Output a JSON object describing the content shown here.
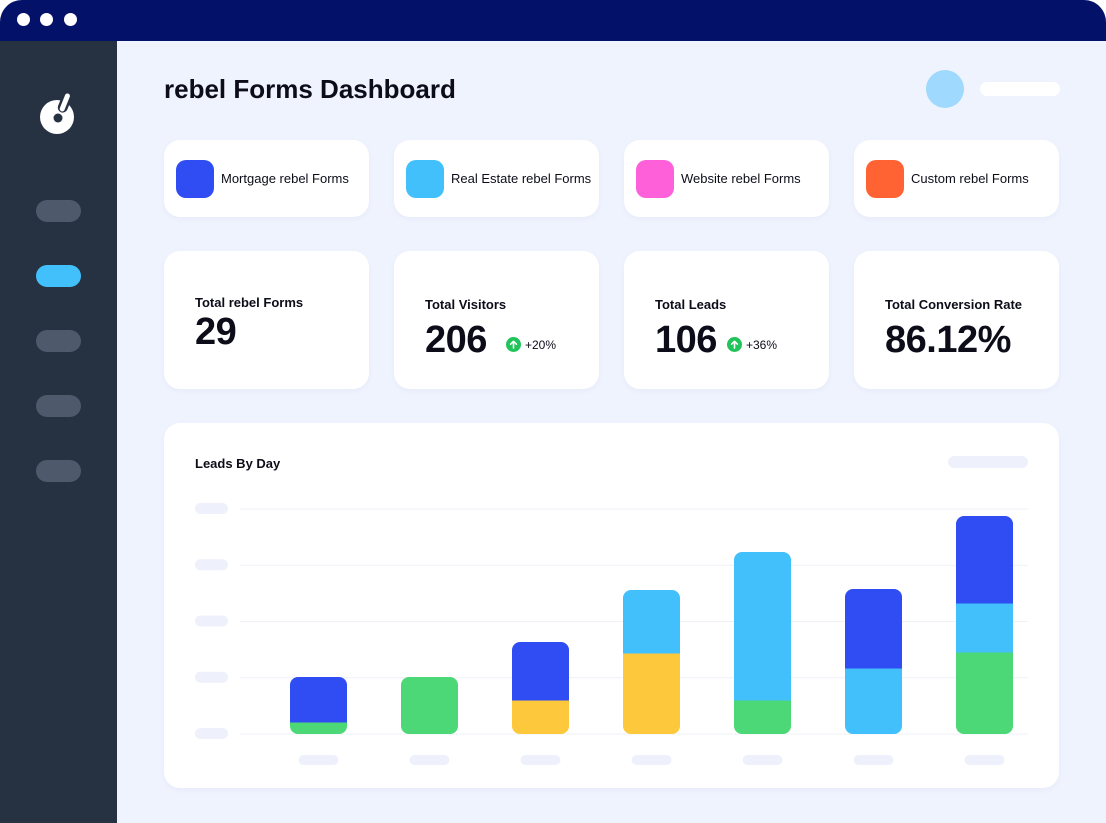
{
  "window": {
    "dots": [
      "close",
      "minimize",
      "maximize"
    ]
  },
  "sidebar": {
    "logo_icon": "rebel-forms-logo-icon",
    "items": [
      {
        "name": "nav-item-1",
        "active": false
      },
      {
        "name": "nav-item-2",
        "active": true
      },
      {
        "name": "nav-item-3",
        "active": false
      },
      {
        "name": "nav-item-4",
        "active": false
      },
      {
        "name": "nav-item-5",
        "active": false
      }
    ],
    "active_color": "#42c0fb"
  },
  "header": {
    "title": "rebel Forms Dashboard"
  },
  "forms": [
    {
      "label": "Mortgage rebel Forms",
      "color": "#2f4df2"
    },
    {
      "label": "Real Estate rebel Forms",
      "color": "#42c0fb"
    },
    {
      "label": "Website rebel Forms",
      "color": "#fe60da"
    },
    {
      "label": "Custom rebel Forms",
      "color": "#ff6333"
    }
  ],
  "stats": [
    {
      "label": "Total rebel Forms",
      "value": "29",
      "trend": ""
    },
    {
      "label": "Total Visitors",
      "value": "206",
      "trend": "+20%"
    },
    {
      "label": "Total Leads",
      "value": "106",
      "trend": "+36%"
    },
    {
      "label": "Total Conversion Rate",
      "value": "86.12%",
      "trend": ""
    }
  ],
  "trend_color": "#21c45b",
  "chart": {
    "title": "Leads By Day"
  },
  "chart_data": {
    "type": "bar",
    "stacked": true,
    "title": "Leads By Day",
    "xlabel": "",
    "ylabel": "",
    "grid": true,
    "ylim": [
      0,
      225
    ],
    "categories": [
      "",
      "",
      "",
      "",
      "",
      "",
      ""
    ],
    "series": [
      {
        "color": "#4cd877",
        "values": [
          12,
          57,
          0,
          0,
          34,
          0,
          82
        ]
      },
      {
        "color": "#fdc83c",
        "values": [
          0,
          0,
          34,
          81,
          0,
          0,
          0
        ]
      },
      {
        "color": "#42c0fb",
        "values": [
          0,
          0,
          0,
          63,
          148,
          66,
          49
        ]
      },
      {
        "color": "#2f4df2",
        "values": [
          45,
          0,
          58,
          0,
          0,
          79,
          87
        ]
      }
    ]
  }
}
